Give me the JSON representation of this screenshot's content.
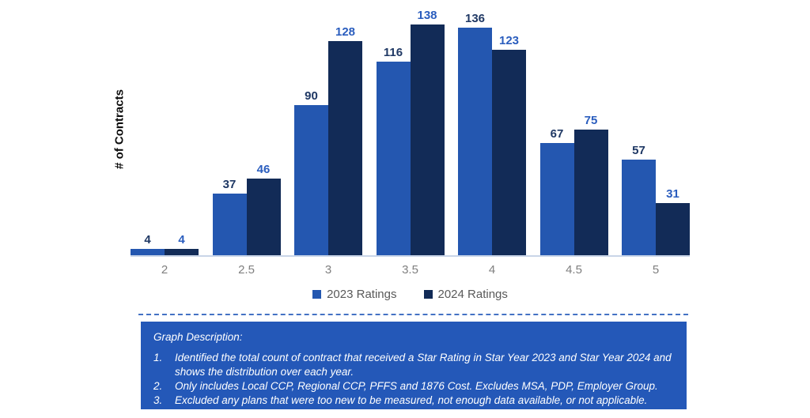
{
  "chart_data": {
    "type": "bar",
    "title": "",
    "categories": [
      "2",
      "2.5",
      "3",
      "3.5",
      "4",
      "4.5",
      "5"
    ],
    "series": [
      {
        "name": "2023 Ratings",
        "color": "#2457B0",
        "label_color": "#1F3864",
        "values": [
          4,
          37,
          90,
          116,
          136,
          67,
          57
        ]
      },
      {
        "name": "2024 Ratings",
        "color": "#122B57",
        "label_color": "#2A5DBE",
        "values": [
          4,
          46,
          128,
          138,
          123,
          75,
          31
        ]
      }
    ],
    "xlabel": "",
    "ylabel": "# of Contracts",
    "ylim": [
      0,
      138
    ],
    "grid": false,
    "legend_position": "bottom",
    "data_labels": true,
    "tick_label_color": "#7F7F7F",
    "legend_text_color": "#595959",
    "axis_line_color": "#C9D5E8"
  },
  "description": {
    "title": "Graph Description:",
    "panel_color": "#2458B8",
    "text_color": "#FFFFFF",
    "divider_color": "#4472C4",
    "items": [
      {
        "number": "1.",
        "text": "Identified the total count of contract that received a Star Rating in Star Year 2023 and Star Year 2024 and shows the distribution over each year."
      },
      {
        "number": "2.",
        "text": "Only includes Local CCP, Regional CCP, PFFS and 1876 Cost. Excludes MSA, PDP, Employer Group."
      },
      {
        "number": "3.",
        "text": "Excluded any plans that were too new to be measured, not enough data available, or not applicable."
      }
    ]
  }
}
